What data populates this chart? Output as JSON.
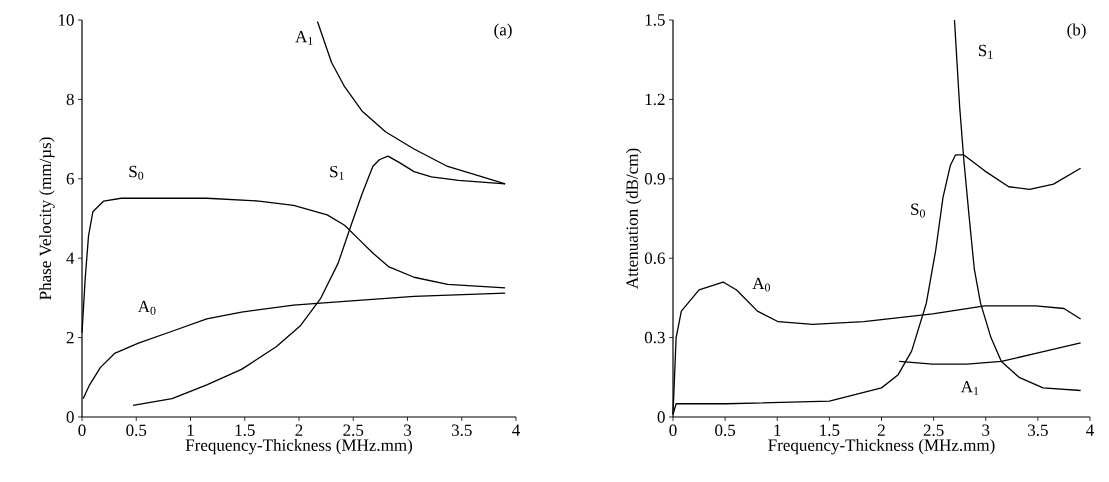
{
  "chart_data": [
    {
      "type": "line",
      "xlabel": "Frequency-Thickness (MHz.mm)",
      "ylabel": "Phase Velocity (mm/µs)",
      "annotations": [
        "(a)"
      ],
      "xlim": [
        0,
        4
      ],
      "ylim": [
        0,
        10
      ],
      "xticks": [
        0,
        0.5,
        1,
        1.5,
        2,
        2.5,
        3,
        3.5,
        4
      ],
      "yticks": [
        0,
        2,
        4,
        6,
        8,
        10
      ],
      "series": [
        {
          "name": "A$_{1}$",
          "color": "#000000",
          "x": [
            2.17,
            2.3,
            2.42,
            2.58,
            2.8,
            3.06,
            3.37,
            3.69,
            3.9
          ],
          "values": [
            9.96,
            8.93,
            8.32,
            7.71,
            7.18,
            6.75,
            6.31,
            6.05,
            5.87
          ]
        },
        {
          "name": "S$_{1}$",
          "color": "#000000",
          "x": [
            0.47,
            0.83,
            1.15,
            1.47,
            1.79,
            2.01,
            2.2,
            2.36,
            2.48,
            2.58,
            2.68,
            2.74,
            2.82,
            2.93,
            3.06,
            3.22,
            3.47,
            3.9
          ],
          "values": [
            0.29,
            0.46,
            0.81,
            1.2,
            1.77,
            2.29,
            2.99,
            3.87,
            4.83,
            5.61,
            6.31,
            6.48,
            6.57,
            6.4,
            6.18,
            6.05,
            5.96,
            5.87
          ]
        },
        {
          "name": "S$_{0}$",
          "color": "#000000",
          "x": [
            0,
            0.03,
            0.06,
            0.1,
            0.2,
            0.36,
            1.15,
            1.63,
            1.95,
            2.26,
            2.42,
            2.55,
            2.68,
            2.83,
            3.06,
            3.37,
            3.9
          ],
          "values": [
            2.12,
            3.52,
            4.56,
            5.17,
            5.44,
            5.51,
            5.51,
            5.44,
            5.33,
            5.09,
            4.83,
            4.48,
            4.13,
            3.78,
            3.52,
            3.34,
            3.25
          ]
        },
        {
          "name": "A$_{0}$",
          "color": "#000000",
          "x": [
            0.01,
            0.07,
            0.17,
            0.3,
            0.52,
            0.83,
            1.15,
            1.47,
            1.95,
            2.42,
            3.06,
            3.9
          ],
          "values": [
            0.46,
            0.81,
            1.25,
            1.6,
            1.86,
            2.16,
            2.47,
            2.64,
            2.82,
            2.91,
            3.04,
            3.12
          ]
        }
      ]
    },
    {
      "type": "line",
      "xlabel": "Frequency-Thickness (MHz.mm)",
      "ylabel": "Attenuation (dB/cm)",
      "annotations": [
        "(b)"
      ],
      "xlim": [
        0,
        4
      ],
      "ylim": [
        0,
        1.5
      ],
      "xticks": [
        0,
        0.5,
        1,
        1.5,
        2,
        2.5,
        3,
        3.5,
        4
      ],
      "yticks": [
        0,
        0.3,
        0.6,
        0.9,
        1.2,
        1.5
      ],
      "series": [
        {
          "name": "S$_{1}$",
          "color": "#000000",
          "x": [
            2.7,
            2.75,
            2.79,
            2.84,
            2.89,
            2.95,
            3.05,
            3.15,
            3.32,
            3.55,
            3.91
          ],
          "values": [
            1.5,
            1.17,
            0.97,
            0.76,
            0.56,
            0.43,
            0.3,
            0.21,
            0.15,
            0.11,
            0.1
          ]
        },
        {
          "name": "S$_{0}$",
          "color": "#000000",
          "x": [
            0,
            0.03,
            0.51,
            1.5,
            2.0,
            2.16,
            2.29,
            2.43,
            2.52,
            2.59,
            2.66,
            2.71,
            2.79,
            2.99,
            3.22,
            3.42,
            3.65,
            3.91
          ],
          "values": [
            0.01,
            0.05,
            0.05,
            0.06,
            0.11,
            0.16,
            0.25,
            0.43,
            0.63,
            0.83,
            0.95,
            0.99,
            0.99,
            0.93,
            0.87,
            0.86,
            0.88,
            0.94
          ]
        },
        {
          "name": "A$_{0}$",
          "color": "#000000",
          "x": [
            0,
            0.03,
            0.08,
            0.25,
            0.48,
            0.61,
            0.81,
            1.01,
            1.34,
            1.83,
            2.49,
            2.99,
            3.48,
            3.75,
            3.91
          ],
          "values": [
            0.01,
            0.3,
            0.4,
            0.48,
            0.51,
            0.48,
            0.4,
            0.36,
            0.35,
            0.36,
            0.39,
            0.42,
            0.42,
            0.41,
            0.37
          ]
        },
        {
          "name": "A$_{1}$",
          "color": "#000000",
          "x": [
            2.17,
            2.49,
            2.82,
            3.15,
            3.48,
            3.91
          ],
          "values": [
            0.21,
            0.2,
            0.2,
            0.21,
            0.24,
            0.28
          ]
        }
      ]
    }
  ]
}
